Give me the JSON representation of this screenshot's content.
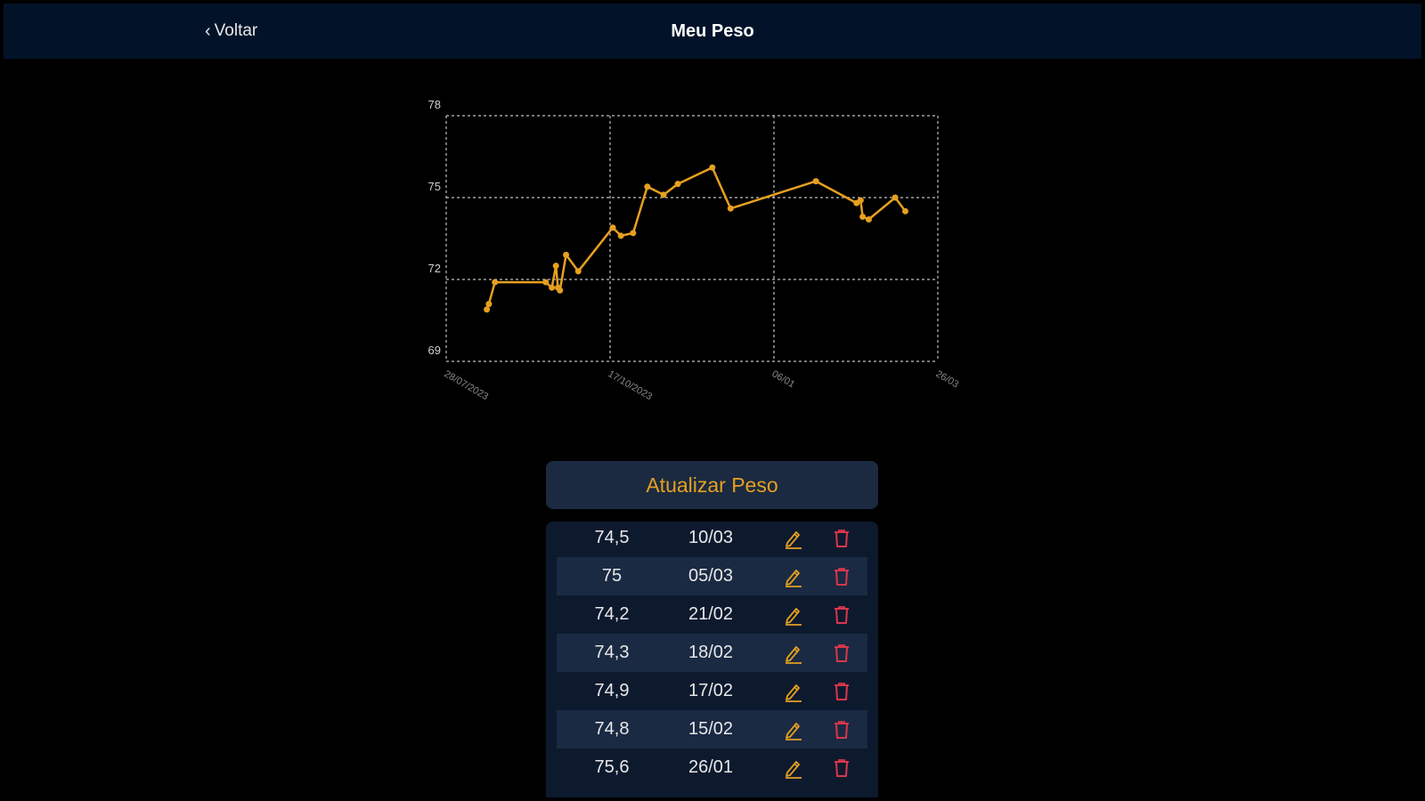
{
  "header": {
    "back_label": "Voltar",
    "title": "Meu Peso"
  },
  "colors": {
    "accent": "#e6a020",
    "delete": "#d9364a",
    "header_bg": "#021329",
    "row_alt": "#1a2a43"
  },
  "chart_data": {
    "type": "line",
    "title": "",
    "xlabel": "",
    "ylabel": "",
    "ylim": [
      69,
      78
    ],
    "yticks": [
      69,
      72,
      75,
      78
    ],
    "xticks": [
      "28/07/2023",
      "17/10/2023",
      "06/01",
      "26/03"
    ],
    "grid": true,
    "series": [
      {
        "values": [
          {
            "x": "2023-08-17",
            "y": 70.9
          },
          {
            "x": "2023-08-18",
            "y": 71.1
          },
          {
            "x": "2023-08-21",
            "y": 71.9
          },
          {
            "x": "2023-09-15",
            "y": 71.9
          },
          {
            "x": "2023-09-18",
            "y": 71.7
          },
          {
            "x": "2023-09-20",
            "y": 72.5
          },
          {
            "x": "2023-09-21",
            "y": 71.7
          },
          {
            "x": "2023-09-22",
            "y": 71.6
          },
          {
            "x": "2023-09-25",
            "y": 72.9
          },
          {
            "x": "2023-10-01",
            "y": 72.3
          },
          {
            "x": "2023-10-18",
            "y": 73.9
          },
          {
            "x": "2023-10-22",
            "y": 73.6
          },
          {
            "x": "2023-10-28",
            "y": 73.7
          },
          {
            "x": "2023-11-04",
            "y": 75.4
          },
          {
            "x": "2023-11-12",
            "y": 75.1
          },
          {
            "x": "2023-11-19",
            "y": 75.5
          },
          {
            "x": "2023-12-06",
            "y": 76.1
          },
          {
            "x": "2023-12-15",
            "y": 74.6
          },
          {
            "x": "2024-01-26",
            "y": 75.6
          },
          {
            "x": "2024-02-15",
            "y": 74.8
          },
          {
            "x": "2024-02-17",
            "y": 74.9
          },
          {
            "x": "2024-02-18",
            "y": 74.3
          },
          {
            "x": "2024-02-21",
            "y": 74.2
          },
          {
            "x": "2024-03-05",
            "y": 75.0
          },
          {
            "x": "2024-03-10",
            "y": 74.5
          }
        ]
      }
    ]
  },
  "update_button_label": "Atualizar Peso",
  "entries": [
    {
      "weight": "74,5",
      "date": "10/03"
    },
    {
      "weight": "75",
      "date": "05/03"
    },
    {
      "weight": "74,2",
      "date": "21/02"
    },
    {
      "weight": "74,3",
      "date": "18/02"
    },
    {
      "weight": "74,9",
      "date": "17/02"
    },
    {
      "weight": "74,8",
      "date": "15/02"
    },
    {
      "weight": "75,6",
      "date": "26/01"
    }
  ],
  "icons": {
    "back": "chevron-left-icon",
    "edit": "pencil-icon",
    "delete": "trash-icon"
  }
}
